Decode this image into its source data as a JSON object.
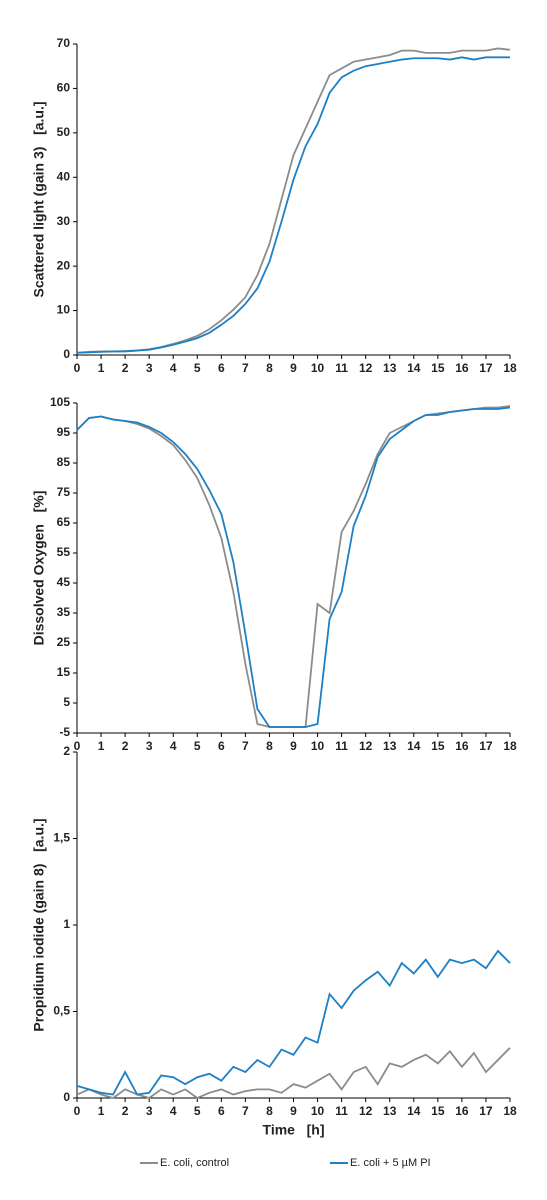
{
  "chart_data": [
    {
      "type": "line",
      "ylabel": "Scattered light (gain 3)   [a.u.]",
      "x": [
        0,
        0.5,
        1,
        1.5,
        2,
        2.5,
        3,
        3.5,
        4,
        4.5,
        5,
        5.5,
        6,
        6.5,
        7,
        7.5,
        8,
        8.5,
        9,
        9.5,
        10,
        10.5,
        11,
        11.5,
        12,
        12.5,
        13,
        13.5,
        14,
        14.5,
        15,
        15.5,
        16,
        16.5,
        17,
        17.5,
        18
      ],
      "xlim": [
        0,
        18
      ],
      "xticks": [
        0,
        1,
        2,
        3,
        4,
        5,
        6,
        7,
        8,
        9,
        10,
        11,
        12,
        13,
        14,
        15,
        16,
        17,
        18
      ],
      "ylim": [
        0,
        70
      ],
      "yticks": [
        0,
        10,
        20,
        30,
        40,
        50,
        60,
        70
      ],
      "series": [
        {
          "color": "#8c8c8c",
          "values": [
            0.5,
            0.7,
            0.8,
            0.8,
            0.9,
            1,
            1.3,
            1.8,
            2.5,
            3.3,
            4.3,
            5.8,
            7.8,
            10.2,
            13,
            18,
            25,
            35,
            45,
            51,
            57,
            63,
            64.5,
            66,
            66.5,
            67,
            67.5,
            68.5,
            68.5,
            68,
            68,
            68,
            68.5,
            68.5,
            68.5,
            69,
            68.7
          ]
        },
        {
          "color": "#1f7fc4",
          "values": [
            0.5,
            0.6,
            0.7,
            0.8,
            0.8,
            1,
            1.2,
            1.7,
            2.3,
            3,
            3.8,
            5,
            6.8,
            8.8,
            11.5,
            15,
            21,
            30,
            39.5,
            47,
            52,
            59,
            62.5,
            64,
            65,
            65.5,
            66,
            66.5,
            66.8,
            66.8,
            66.8,
            66.5,
            67,
            66.5,
            67,
            67,
            67
          ]
        }
      ]
    },
    {
      "type": "line",
      "ylabel": "Dissolved Oxygen   [%]",
      "x": [
        0,
        0.5,
        1,
        1.5,
        2,
        2.5,
        3,
        3.5,
        4,
        4.5,
        5,
        5.5,
        6,
        6.5,
        7,
        7.5,
        8,
        8.5,
        9,
        9.5,
        10,
        10.5,
        11,
        11.5,
        12,
        12.5,
        13,
        13.5,
        14,
        14.5,
        15,
        15.5,
        16,
        16.5,
        17,
        17.5,
        18
      ],
      "xlim": [
        0,
        18
      ],
      "xticks": [
        0,
        1,
        2,
        3,
        4,
        5,
        6,
        7,
        8,
        9,
        10,
        11,
        12,
        13,
        14,
        15,
        16,
        17,
        18
      ],
      "ylim": [
        -5,
        105
      ],
      "yticks": [
        -5,
        5,
        15,
        25,
        35,
        45,
        55,
        65,
        75,
        85,
        95,
        105
      ],
      "series": [
        {
          "color": "#8c8c8c",
          "values": [
            96,
            100,
            100.5,
            99.5,
            99,
            98,
            96.5,
            94,
            91,
            86,
            80,
            71,
            60,
            42,
            18,
            -2,
            -3,
            -3,
            -3,
            -3,
            38,
            35,
            62,
            69,
            78,
            88,
            95,
            97,
            99,
            101,
            101.5,
            102,
            102.5,
            103,
            103.5,
            103.5,
            104
          ]
        },
        {
          "color": "#1f7fc4",
          "values": [
            96,
            100,
            100.5,
            99.5,
            99,
            98.5,
            97,
            95,
            92,
            88,
            83,
            76,
            68,
            52,
            28,
            3,
            -3,
            -3,
            -3,
            -3,
            -2,
            33,
            42,
            64,
            74,
            87,
            93,
            96,
            99,
            101,
            101,
            102,
            102.5,
            103,
            103,
            103,
            103.5
          ]
        }
      ]
    },
    {
      "type": "line",
      "ylabel": "Propidium iodide (gain 8)   [a.u.]",
      "xlabel": "Time   [h]",
      "x": [
        0,
        0.5,
        1,
        1.5,
        2,
        2.5,
        3,
        3.5,
        4,
        4.5,
        5,
        5.5,
        6,
        6.5,
        7,
        7.5,
        8,
        8.5,
        9,
        9.5,
        10,
        10.5,
        11,
        11.5,
        12,
        12.5,
        13,
        13.5,
        14,
        14.5,
        15,
        15.5,
        16,
        16.5,
        17,
        17.5,
        18
      ],
      "xlim": [
        0,
        18
      ],
      "xticks": [
        0,
        1,
        2,
        3,
        4,
        5,
        6,
        7,
        8,
        9,
        10,
        11,
        12,
        13,
        14,
        15,
        16,
        17,
        18
      ],
      "ylim": [
        0,
        2
      ],
      "yticks": [
        0,
        {
          "value": 0.5,
          "label": "0,5"
        },
        1,
        {
          "value": 1.5,
          "label": "1,5"
        },
        2
      ],
      "series": [
        {
          "name": "E. coli, control",
          "color": "#8c8c8c",
          "values": [
            0.02,
            0.05,
            0.02,
            0,
            0.05,
            0.02,
            0,
            0.05,
            0.02,
            0.05,
            0,
            0.03,
            0.05,
            0.02,
            0.04,
            0.05,
            0.05,
            0.03,
            0.08,
            0.06,
            0.1,
            0.14,
            0.05,
            0.15,
            0.18,
            0.08,
            0.2,
            0.18,
            0.22,
            0.25,
            0.2,
            0.27,
            0.18,
            0.26,
            0.15,
            0.22,
            0.29
          ]
        },
        {
          "name": "E. coli + 5 µM PI",
          "color": "#1f7fc4",
          "values": [
            0.07,
            0.05,
            0.03,
            0.02,
            0.15,
            0.02,
            0.03,
            0.13,
            0.12,
            0.08,
            0.12,
            0.14,
            0.1,
            0.18,
            0.15,
            0.22,
            0.18,
            0.28,
            0.25,
            0.35,
            0.32,
            0.6,
            0.52,
            0.62,
            0.68,
            0.73,
            0.65,
            0.78,
            0.72,
            0.8,
            0.7,
            0.8,
            0.78,
            0.8,
            0.75,
            0.85,
            0.78
          ]
        }
      ]
    }
  ]
}
